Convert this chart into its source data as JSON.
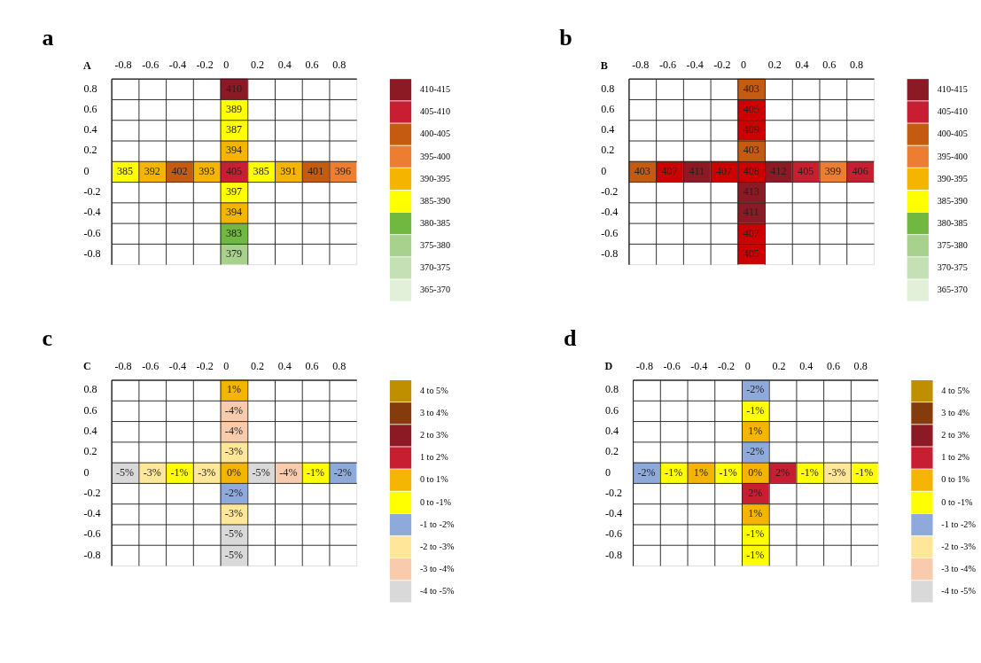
{
  "chart_data": [
    {
      "type": "heatmap",
      "title": "a",
      "annotations": [
        "A"
      ],
      "data_labels": true,
      "categories": [
        "-0.8",
        "-0.6",
        "-0.4",
        "-0.2",
        "0",
        "0.2",
        "0.4",
        "0.6",
        "0.8"
      ],
      "y_categories": [
        "0.8",
        "0.6",
        "0.4",
        "0.2",
        "0",
        "-0.2",
        "-0.4",
        "-0.6",
        "-0.8"
      ],
      "cells": [
        [
          null,
          null,
          null,
          null,
          410,
          null,
          null,
          null,
          null
        ],
        [
          null,
          null,
          null,
          null,
          389,
          null,
          null,
          null,
          null
        ],
        [
          null,
          null,
          null,
          null,
          387,
          null,
          null,
          null,
          null
        ],
        [
          null,
          null,
          null,
          null,
          394,
          null,
          null,
          null,
          null
        ],
        [
          385,
          392,
          402,
          393,
          405,
          385,
          391,
          401,
          396
        ],
        [
          null,
          null,
          null,
          null,
          397,
          null,
          null,
          null,
          null
        ],
        [
          null,
          null,
          null,
          null,
          394,
          null,
          null,
          null,
          null
        ],
        [
          null,
          null,
          null,
          null,
          383,
          null,
          null,
          null,
          null
        ],
        [
          null,
          null,
          null,
          null,
          379,
          null,
          null,
          null,
          null
        ]
      ],
      "colors": [
        [
          null,
          null,
          null,
          null,
          "#8b1a24",
          null,
          null,
          null,
          null
        ],
        [
          null,
          null,
          null,
          null,
          "#ffff00",
          null,
          null,
          null,
          null
        ],
        [
          null,
          null,
          null,
          null,
          "#ffff00",
          null,
          null,
          null,
          null
        ],
        [
          null,
          null,
          null,
          null,
          "#f4b400",
          null,
          null,
          null,
          null
        ],
        [
          "#ffff00",
          "#f4b400",
          "#c55a11",
          "#f4b400",
          "#c81e32",
          "#ffff00",
          "#f4b400",
          "#c55a11",
          "#ed7d31"
        ],
        [
          null,
          null,
          null,
          null,
          "#ffff00",
          null,
          null,
          null,
          null
        ],
        [
          null,
          null,
          null,
          null,
          "#f4b400",
          null,
          null,
          null,
          null
        ],
        [
          null,
          null,
          null,
          null,
          "#70b840",
          null,
          null,
          null,
          null
        ],
        [
          null,
          null,
          null,
          null,
          "#a9d18e",
          null,
          null,
          null,
          null
        ]
      ]
    },
    {
      "type": "other",
      "categories": [
        "410-415",
        "405-410",
        "400-405",
        "395-400",
        "390-395",
        "385-390",
        "380-385",
        "375-380",
        "370-375",
        "365-370"
      ],
      "colors": [
        "#8b1a24",
        "#c81e32",
        "#c55a11",
        "#ed7d31",
        "#f4b400",
        "#ffff00",
        "#70b840",
        "#a9d18e",
        "#c5e0b4",
        "#e2f0d9"
      ]
    },
    {
      "type": "heatmap",
      "title": "b",
      "annotations": [
        "B"
      ],
      "data_labels": true,
      "categories": [
        "-0.8",
        "-0.6",
        "-0.4",
        "-0.2",
        "0",
        "0.2",
        "0.4",
        "0.6",
        "0.8"
      ],
      "y_categories": [
        "0.8",
        "0.6",
        "0.4",
        "0.2",
        "0",
        "-0.2",
        "-0.4",
        "-0.6",
        "-0.8"
      ],
      "cells": [
        [
          null,
          null,
          null,
          null,
          403,
          null,
          null,
          null,
          null
        ],
        [
          null,
          null,
          null,
          null,
          405,
          null,
          null,
          null,
          null
        ],
        [
          null,
          null,
          null,
          null,
          409,
          null,
          null,
          null,
          null
        ],
        [
          null,
          null,
          null,
          null,
          403,
          null,
          null,
          null,
          null
        ],
        [
          403,
          407,
          411,
          407,
          408,
          412,
          405,
          399,
          406
        ],
        [
          null,
          null,
          null,
          null,
          413,
          null,
          null,
          null,
          null
        ],
        [
          null,
          null,
          null,
          null,
          411,
          null,
          null,
          null,
          null
        ],
        [
          null,
          null,
          null,
          null,
          407,
          null,
          null,
          null,
          null
        ],
        [
          null,
          null,
          null,
          null,
          405,
          null,
          null,
          null,
          null
        ]
      ],
      "colors": [
        [
          null,
          null,
          null,
          null,
          "#c55a11",
          null,
          null,
          null,
          null
        ],
        [
          null,
          null,
          null,
          null,
          "#cc0000",
          null,
          null,
          null,
          null
        ],
        [
          null,
          null,
          null,
          null,
          "#cc0000",
          null,
          null,
          null,
          null
        ],
        [
          null,
          null,
          null,
          null,
          "#c55a11",
          null,
          null,
          null,
          null
        ],
        [
          "#c55a11",
          "#cc0000",
          "#8b1a24",
          "#cc0000",
          "#cc0000",
          "#8b1a24",
          "#c81e32",
          "#ed7d31",
          "#c81e32"
        ],
        [
          null,
          null,
          null,
          null,
          "#8b1a24",
          null,
          null,
          null,
          null
        ],
        [
          null,
          null,
          null,
          null,
          "#8b1a24",
          null,
          null,
          null,
          null
        ],
        [
          null,
          null,
          null,
          null,
          "#cc0000",
          null,
          null,
          null,
          null
        ],
        [
          null,
          null,
          null,
          null,
          "#cc0000",
          null,
          null,
          null,
          null
        ]
      ]
    },
    {
      "type": "other",
      "categories": [
        "410-415",
        "405-410",
        "400-405",
        "395-400",
        "390-395",
        "385-390",
        "380-385",
        "375-380",
        "370-375",
        "365-370"
      ],
      "colors": [
        "#8b1a24",
        "#c81e32",
        "#c55a11",
        "#ed7d31",
        "#f4b400",
        "#ffff00",
        "#70b840",
        "#a9d18e",
        "#c5e0b4",
        "#e2f0d9"
      ]
    },
    {
      "type": "heatmap",
      "title": "c",
      "annotations": [
        "C"
      ],
      "categories": [
        "-0.8",
        "-0.6",
        "-0.4",
        "-0.2",
        "0",
        "0.2",
        "0.4",
        "0.6",
        "0.8"
      ],
      "y_categories": [
        "0.8",
        "0.6",
        "0.4",
        "0.2",
        "0",
        "-0.2",
        "-0.4",
        "-0.6",
        "-0.8"
      ],
      "cells": [
        [
          null,
          null,
          null,
          null,
          1,
          null,
          null,
          null,
          null
        ],
        [
          null,
          null,
          null,
          null,
          -4,
          null,
          null,
          null,
          null
        ],
        [
          null,
          null,
          null,
          null,
          -4,
          null,
          null,
          null,
          null
        ],
        [
          null,
          null,
          null,
          null,
          -3,
          null,
          null,
          null,
          null
        ],
        [
          -5,
          -3,
          -1,
          -3,
          0,
          -5,
          -4,
          -1,
          -2
        ],
        [
          null,
          null,
          null,
          null,
          -2,
          null,
          null,
          null,
          null
        ],
        [
          null,
          null,
          null,
          null,
          -3,
          null,
          null,
          null,
          null
        ],
        [
          null,
          null,
          null,
          null,
          -5,
          null,
          null,
          null,
          null
        ],
        [
          null,
          null,
          null,
          null,
          -5,
          null,
          null,
          null,
          null
        ]
      ],
      "cell_labels": [
        [
          null,
          null,
          null,
          null,
          "1%",
          null,
          null,
          null,
          null
        ],
        [
          null,
          null,
          null,
          null,
          "-4%",
          null,
          null,
          null,
          null
        ],
        [
          null,
          null,
          null,
          null,
          "-4%",
          null,
          null,
          null,
          null
        ],
        [
          null,
          null,
          null,
          null,
          "-3%",
          null,
          null,
          null,
          null
        ],
        [
          "-5%",
          "-3%",
          "-1%",
          "-3%",
          "0%",
          "-5%",
          "-4%",
          "-1%",
          "-2%"
        ],
        [
          null,
          null,
          null,
          null,
          "-2%",
          null,
          null,
          null,
          null
        ],
        [
          null,
          null,
          null,
          null,
          "-3%",
          null,
          null,
          null,
          null
        ],
        [
          null,
          null,
          null,
          null,
          "-5%",
          null,
          null,
          null,
          null
        ],
        [
          null,
          null,
          null,
          null,
          "-5%",
          null,
          null,
          null,
          null
        ]
      ],
      "colors": [
        [
          null,
          null,
          null,
          null,
          "#f4b400",
          null,
          null,
          null,
          null
        ],
        [
          null,
          null,
          null,
          null,
          "#f8cbad",
          null,
          null,
          null,
          null
        ],
        [
          null,
          null,
          null,
          null,
          "#f8cbad",
          null,
          null,
          null,
          null
        ],
        [
          null,
          null,
          null,
          null,
          "#ffe699",
          null,
          null,
          null,
          null
        ],
        [
          "#d9d9d9",
          "#ffe699",
          "#ffff00",
          "#ffe699",
          "#f4b400",
          "#d9d9d9",
          "#f8cbad",
          "#ffff00",
          "#8eaadb"
        ],
        [
          null,
          null,
          null,
          null,
          "#8eaadb",
          null,
          null,
          null,
          null
        ],
        [
          null,
          null,
          null,
          null,
          "#ffe699",
          null,
          null,
          null,
          null
        ],
        [
          null,
          null,
          null,
          null,
          "#d9d9d9",
          null,
          null,
          null,
          null
        ],
        [
          null,
          null,
          null,
          null,
          "#d9d9d9",
          null,
          null,
          null,
          null
        ]
      ]
    },
    {
      "type": "other",
      "categories": [
        "4 to 5%",
        "3 to 4%",
        "2 to 3%",
        "1 to 2%",
        "0 to 1%",
        "0 to -1%",
        "-1 to -2%",
        "-2 to -3%",
        "-3 to -4%",
        "-4 to -5%"
      ],
      "colors": [
        "#bf8f00",
        "#843c0c",
        "#8b1a24",
        "#c81e32",
        "#f4b400",
        "#ffff00",
        "#8eaadb",
        "#ffe699",
        "#f8cbad",
        "#d9d9d9"
      ]
    },
    {
      "type": "heatmap",
      "title": "d",
      "annotations": [
        "D"
      ],
      "categories": [
        "-0.8",
        "-0.6",
        "-0.4",
        "-0.2",
        "0",
        "0.2",
        "0.4",
        "0.6",
        "0.8"
      ],
      "y_categories": [
        "0.8",
        "0.6",
        "0.4",
        "0.2",
        "0",
        "-0.2",
        "-0.4",
        "-0.6",
        "-0.8"
      ],
      "cells": [
        [
          null,
          null,
          null,
          null,
          -2,
          null,
          null,
          null,
          null
        ],
        [
          null,
          null,
          null,
          null,
          -1,
          null,
          null,
          null,
          null
        ],
        [
          null,
          null,
          null,
          null,
          1,
          null,
          null,
          null,
          null
        ],
        [
          null,
          null,
          null,
          null,
          -2,
          null,
          null,
          null,
          null
        ],
        [
          -2,
          -1,
          1,
          -1,
          0,
          2,
          -1,
          -3,
          -1
        ],
        [
          null,
          null,
          null,
          null,
          2,
          null,
          null,
          null,
          null
        ],
        [
          null,
          null,
          null,
          null,
          1,
          null,
          null,
          null,
          null
        ],
        [
          null,
          null,
          null,
          null,
          -1,
          null,
          null,
          null,
          null
        ],
        [
          null,
          null,
          null,
          null,
          -1,
          null,
          null,
          null,
          null
        ]
      ],
      "cell_labels": [
        [
          null,
          null,
          null,
          null,
          "-2%",
          null,
          null,
          null,
          null
        ],
        [
          null,
          null,
          null,
          null,
          "-1%",
          null,
          null,
          null,
          null
        ],
        [
          null,
          null,
          null,
          null,
          "1%",
          null,
          null,
          null,
          null
        ],
        [
          null,
          null,
          null,
          null,
          "-2%",
          null,
          null,
          null,
          null
        ],
        [
          "-2%",
          "-1%",
          "1%",
          "-1%",
          "0%",
          "2%",
          "-1%",
          "-3%",
          "-1%"
        ],
        [
          null,
          null,
          null,
          null,
          "2%",
          null,
          null,
          null,
          null
        ],
        [
          null,
          null,
          null,
          null,
          "1%",
          null,
          null,
          null,
          null
        ],
        [
          null,
          null,
          null,
          null,
          "-1%",
          null,
          null,
          null,
          null
        ],
        [
          null,
          null,
          null,
          null,
          "-1%",
          null,
          null,
          null,
          null
        ]
      ],
      "colors": [
        [
          null,
          null,
          null,
          null,
          "#8eaadb",
          null,
          null,
          null,
          null
        ],
        [
          null,
          null,
          null,
          null,
          "#ffff00",
          null,
          null,
          null,
          null
        ],
        [
          null,
          null,
          null,
          null,
          "#f4b400",
          null,
          null,
          null,
          null
        ],
        [
          null,
          null,
          null,
          null,
          "#8eaadb",
          null,
          null,
          null,
          null
        ],
        [
          "#8eaadb",
          "#ffff00",
          "#f4b400",
          "#ffff00",
          "#f4b400",
          "#c81e32",
          "#ffff00",
          "#ffe699",
          "#ffff00"
        ],
        [
          null,
          null,
          null,
          null,
          "#c81e32",
          null,
          null,
          null,
          null
        ],
        [
          null,
          null,
          null,
          null,
          "#f4b400",
          null,
          null,
          null,
          null
        ],
        [
          null,
          null,
          null,
          null,
          "#ffff00",
          null,
          null,
          null,
          null
        ],
        [
          null,
          null,
          null,
          null,
          "#ffff00",
          null,
          null,
          null,
          null
        ]
      ]
    },
    {
      "type": "other",
      "categories": [
        "4 to 5%",
        "3 to 4%",
        "2 to 3%",
        "1 to 2%",
        "0 to 1%",
        "0 to -1%",
        "-1 to -2%",
        "-2 to -3%",
        "-3 to -4%",
        "-4 to -5%"
      ],
      "colors": [
        "#bf8f00",
        "#843c0c",
        "#8b1a24",
        "#c81e32",
        "#f4b400",
        "#ffff00",
        "#8eaadb",
        "#ffe699",
        "#f8cbad",
        "#d9d9d9"
      ]
    }
  ]
}
